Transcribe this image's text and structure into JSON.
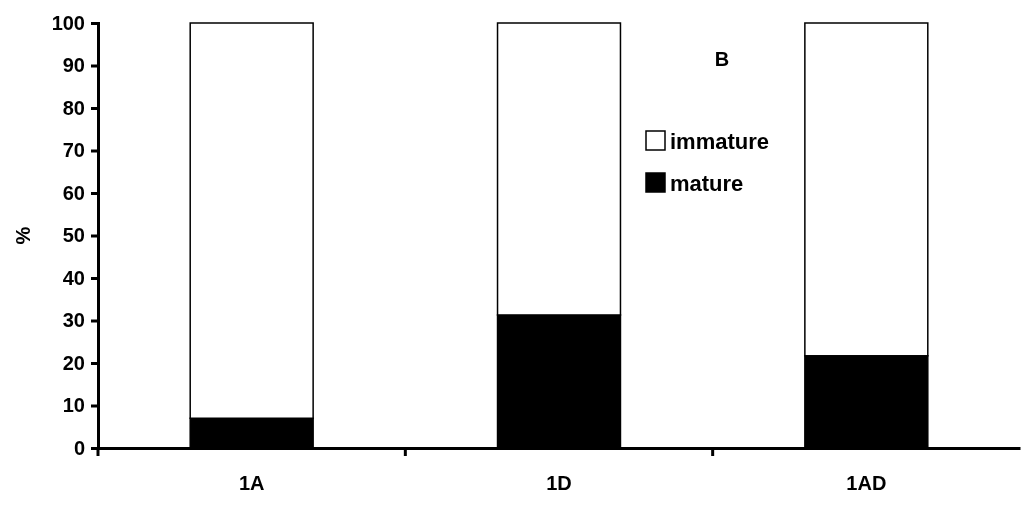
{
  "chart_data": {
    "type": "bar",
    "title": "B",
    "ylabel": "%",
    "categories": [
      "1A",
      "1D",
      "1AD"
    ],
    "stacked": true,
    "series": [
      {
        "name": "mature",
        "color": "#000000",
        "values": [
          7,
          31.3,
          21.7
        ]
      },
      {
        "name": "immature",
        "color": "#ffffff",
        "values": [
          93,
          68.7,
          78.3
        ]
      }
    ],
    "ylim": [
      0,
      100
    ],
    "yticks": [
      0,
      10,
      20,
      30,
      40,
      50,
      60,
      70,
      80,
      90,
      100
    ],
    "legend": "top right"
  }
}
